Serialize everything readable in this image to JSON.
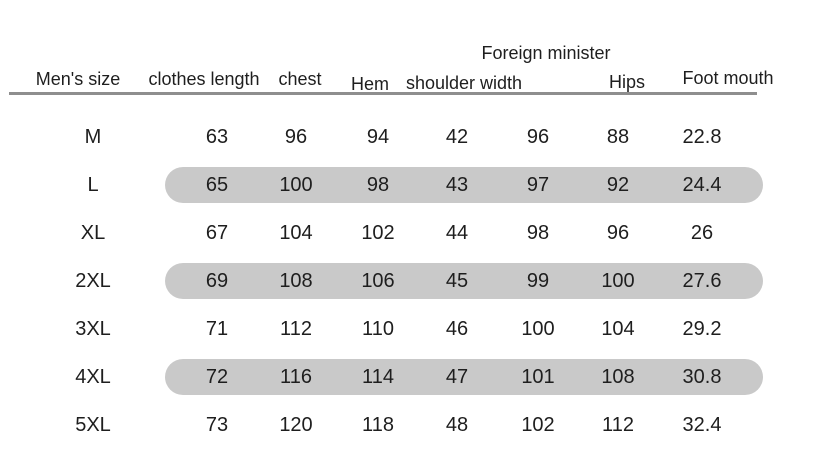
{
  "chart_data": {
    "type": "table",
    "title": "",
    "columns": [
      "Men's size",
      "clothes length",
      "chest",
      "Hem",
      "shoulder width",
      "Foreign minister",
      "Hips",
      "Foot mouth"
    ],
    "rows": [
      [
        "M",
        "63",
        "96",
        "94",
        "42",
        "96",
        "88",
        "22.8"
      ],
      [
        "L",
        "65",
        "100",
        "98",
        "43",
        "97",
        "92",
        "24.4"
      ],
      [
        "XL",
        "67",
        "104",
        "102",
        "44",
        "98",
        "96",
        "26"
      ],
      [
        "2XL",
        "69",
        "108",
        "106",
        "45",
        "99",
        "100",
        "27.6"
      ],
      [
        "3XL",
        "71",
        "112",
        "110",
        "46",
        "100",
        "104",
        "29.2"
      ],
      [
        "4XL",
        "72",
        "116",
        "114",
        "47",
        "101",
        "108",
        "30.8"
      ],
      [
        "5XL",
        "73",
        "120",
        "118",
        "48",
        "102",
        "112",
        "32.4"
      ]
    ],
    "highlighted_rows": [
      "L",
      "2XL",
      "4XL"
    ],
    "layout": {
      "grid": "off",
      "header_rule": "on",
      "row_highlight_style": "rounded-pill"
    },
    "colors": {
      "highlight": "#c9c9c9",
      "rule": "#8e8e8e",
      "text": "#1e1e1e",
      "background": "#ffffff"
    }
  }
}
